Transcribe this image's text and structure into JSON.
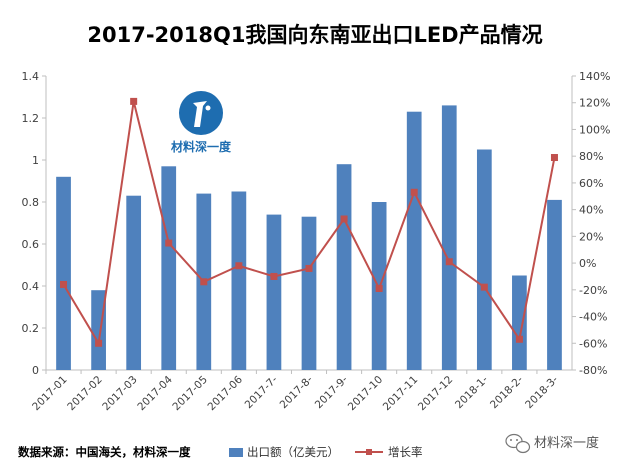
{
  "source_note": "数据来源：中国海关，材料深一度",
  "watermark_logo_text": "材料深一度",
  "watermark_corner_text": "材料深一度",
  "colors": {
    "bar": "#4f81bd",
    "line": "#c0504d",
    "axis": "#bfbfbf"
  },
  "icons": [
    "logo-icon",
    "wechat-icon"
  ],
  "chart_data": {
    "type": "bar",
    "title": "2017-2018Q1我国向东南亚出口LED产品情况",
    "categories": [
      "2017-01",
      "2017-02",
      "2017-03",
      "2017-04",
      "2017-05",
      "2017-06",
      "2017-7-",
      "2017-8-",
      "2017-9-",
      "2017-10",
      "2017-11",
      "2017-12",
      "2018-1-",
      "2018-2-",
      "2018-3-"
    ],
    "series": [
      {
        "name": "出口额（亿美元）",
        "type": "bar",
        "axis": "left",
        "values": [
          0.92,
          0.38,
          0.83,
          0.97,
          0.84,
          0.85,
          0.74,
          0.73,
          0.98,
          0.8,
          1.23,
          1.26,
          1.05,
          0.45,
          0.81
        ]
      },
      {
        "name": "增长率",
        "type": "line",
        "axis": "right",
        "values": [
          -16,
          -60,
          121,
          15,
          -14,
          -2,
          -10,
          -4,
          33,
          -19,
          53,
          1,
          -18,
          -57,
          79
        ]
      }
    ],
    "left_axis": {
      "min": 0,
      "max": 1.4,
      "step": 0.2,
      "tick_labels": [
        "0",
        "0.2",
        "0.4",
        "0.6",
        "0.8",
        "1",
        "1.2",
        "1.4"
      ]
    },
    "right_axis": {
      "min": -80,
      "max": 140,
      "step": 20,
      "tick_labels": [
        "-80%",
        "-60%",
        "-40%",
        "-20%",
        "0%",
        "20%",
        "40%",
        "60%",
        "80%",
        "100%",
        "120%",
        "140%"
      ]
    },
    "grid": false,
    "legend_position": "bottom"
  }
}
